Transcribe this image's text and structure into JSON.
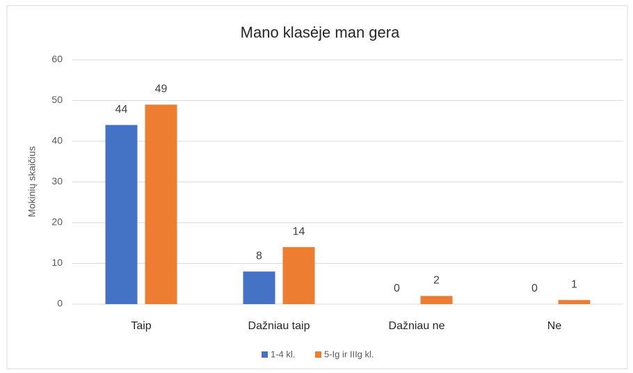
{
  "chart_data": {
    "type": "bar",
    "title": "Mano klasėje man gera",
    "y_label": "Mokinių skaičius",
    "categories": [
      "Taip",
      "Dažniau taip",
      "Dažniau ne",
      "Ne"
    ],
    "series": [
      {
        "name": "1-4 kl.",
        "color": "#4472c4",
        "values": [
          44,
          8,
          0,
          0
        ]
      },
      {
        "name": "5-Ig ir IIIg kl.",
        "color": "#ed7d31",
        "values": [
          49,
          14,
          2,
          1
        ]
      }
    ],
    "ylim": [
      0,
      60
    ],
    "yticks": [
      0,
      10,
      20,
      30,
      40,
      50,
      60
    ],
    "grid": true,
    "legend": "bottom"
  }
}
